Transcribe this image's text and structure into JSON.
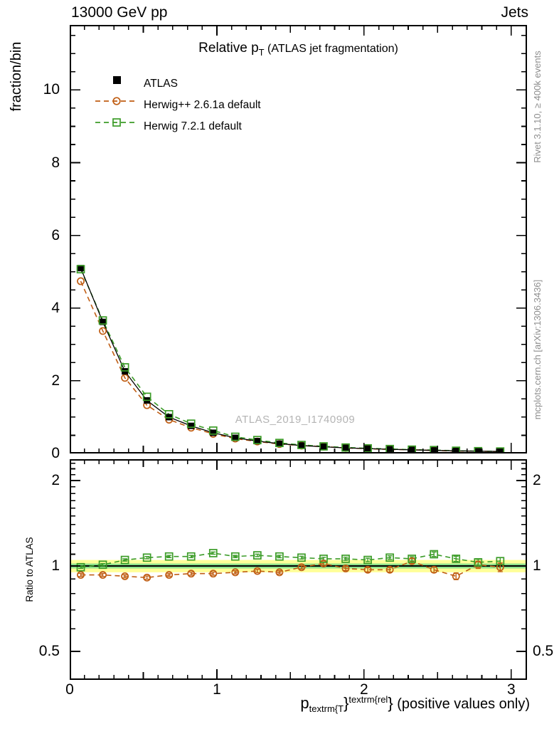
{
  "header": {
    "left": "13000 GeV pp",
    "right": "Jets"
  },
  "title": {
    "main": "Relative p",
    "sub": "T",
    "rest": " (ATLAS jet fragmentation)"
  },
  "legend": [
    {
      "label": "ATLAS",
      "marker": "filled-square-icon"
    },
    {
      "label": "Herwig++ 2.6.1a default",
      "marker": "open-circle-icon"
    },
    {
      "label": "Herwig 7.2.1 default",
      "marker": "open-square-icon"
    }
  ],
  "colors": {
    "atlas": "#000000",
    "herwigpp": "#c05e14",
    "herwig7": "#3c9c28",
    "band_outer": "#ffff99",
    "band_inner": "#8ce08c",
    "ref_line": "#000000",
    "side_note": "#8e8e8e",
    "watermark": "#b4b4b4"
  },
  "watermark": "ATLAS_2019_I1740909",
  "side_notes": {
    "top": "Rivet 3.1.10, ≥ 400k events",
    "bottom": "mcplots.cern.ch [arXiv:1306.3436]"
  },
  "axes": {
    "x": {
      "tick_labels": [
        "0",
        "1",
        "2",
        "3"
      ]
    },
    "main_y": {
      "label": "fraction/bin",
      "tick_labels": [
        "0",
        "2",
        "4",
        "6",
        "8",
        "10"
      ]
    },
    "ratio_y": {
      "label": "Ratio to ATLAS",
      "tick_labels": [
        "0.5",
        "1",
        "2"
      ]
    }
  },
  "xlabel": {
    "p": "p",
    "sub": "textrm{T",
    "brace1": "}",
    "sup": "textrm{rel",
    "brace2": "}",
    "rest": " (positive values only)"
  },
  "chart_data": [
    {
      "type": "line",
      "panel": "main",
      "title": "Relative pT (ATLAS jet fragmentation)",
      "ylabel": "fraction/bin",
      "xlim": [
        0,
        3.107
      ],
      "ylim": [
        0,
        11.79
      ],
      "xticks": [
        0,
        1,
        2,
        3
      ],
      "yticks": [
        0,
        2,
        4,
        6,
        8,
        10
      ],
      "grid": false,
      "legend_position": "upper-left",
      "x": [
        0.075,
        0.225,
        0.375,
        0.525,
        0.675,
        0.825,
        0.975,
        1.125,
        1.275,
        1.425,
        1.575,
        1.725,
        1.875,
        2.025,
        2.175,
        2.325,
        2.475,
        2.625,
        2.775,
        2.925
      ],
      "series": [
        {
          "name": "ATLAS",
          "color": "#000000",
          "marker": "filled-square",
          "line": "solid",
          "values": [
            5.1,
            3.62,
            2.26,
            1.46,
            1.0,
            0.76,
            0.57,
            0.43,
            0.34,
            0.27,
            0.22,
            0.185,
            0.155,
            0.135,
            0.115,
            0.1,
            0.085,
            0.072,
            0.062,
            0.054
          ],
          "errors": [
            0.06,
            0.05,
            0.04,
            0.03,
            0.02,
            0.02,
            0.015,
            0.012,
            0.01,
            0.01,
            0.008,
            0.008,
            0.006,
            0.006,
            0.005,
            0.005,
            0.004,
            0.004,
            0.003,
            0.003
          ]
        },
        {
          "name": "Herwig++ 2.6.1a default",
          "color": "#c05e14",
          "marker": "open-circle",
          "line": "dashed",
          "values": [
            4.74,
            3.37,
            2.08,
            1.33,
            0.93,
            0.71,
            0.54,
            0.41,
            0.33,
            0.26,
            0.218,
            0.189,
            0.152,
            0.131,
            0.112,
            0.104,
            0.082,
            0.066,
            0.063,
            0.053
          ],
          "errors": [
            0.03,
            0.025,
            0.02,
            0.015,
            0.012,
            0.01,
            0.008,
            0.007,
            0.006,
            0.005,
            0.005,
            0.004,
            0.004,
            0.004,
            0.003,
            0.003,
            0.003,
            0.003,
            0.003,
            0.003
          ]
        },
        {
          "name": "Herwig 7.2.1 default",
          "color": "#3c9c28",
          "marker": "open-square",
          "line": "dashed",
          "values": [
            5.07,
            3.66,
            2.37,
            1.56,
            1.08,
            0.82,
            0.63,
            0.46,
            0.37,
            0.29,
            0.235,
            0.196,
            0.164,
            0.142,
            0.123,
            0.106,
            0.094,
            0.076,
            0.064,
            0.056
          ],
          "errors": [
            0.03,
            0.025,
            0.02,
            0.015,
            0.012,
            0.01,
            0.008,
            0.007,
            0.006,
            0.005,
            0.005,
            0.004,
            0.004,
            0.004,
            0.003,
            0.003,
            0.003,
            0.003,
            0.003,
            0.003
          ]
        }
      ]
    },
    {
      "type": "line",
      "panel": "ratio",
      "ylabel": "Ratio to ATLAS",
      "yscale": "log",
      "ylim": [
        0.397,
        2.38
      ],
      "yticks": [
        0.5,
        1,
        2
      ],
      "xticks": [
        0,
        1,
        2,
        3
      ],
      "xlim": [
        0,
        3.107
      ],
      "reference_line": 1.0,
      "bands": [
        {
          "lo": 0.95,
          "hi": 1.05,
          "color": "#ffff99"
        },
        {
          "lo": 0.98,
          "hi": 1.02,
          "color": "#8ce08c"
        }
      ],
      "x": [
        0.075,
        0.225,
        0.375,
        0.525,
        0.675,
        0.825,
        0.975,
        1.125,
        1.275,
        1.425,
        1.575,
        1.725,
        1.875,
        2.025,
        2.175,
        2.325,
        2.475,
        2.625,
        2.775,
        2.925
      ],
      "series": [
        {
          "name": "Herwig++ 2.6.1a default",
          "color": "#c05e14",
          "marker": "open-circle",
          "line": "dashed",
          "values": [
            0.93,
            0.93,
            0.92,
            0.91,
            0.93,
            0.94,
            0.94,
            0.95,
            0.96,
            0.95,
            0.99,
            1.02,
            0.98,
            0.97,
            0.97,
            1.04,
            0.97,
            0.92,
            1.01,
            0.99
          ],
          "errors": [
            0.012,
            0.012,
            0.012,
            0.012,
            0.012,
            0.012,
            0.012,
            0.012,
            0.013,
            0.013,
            0.014,
            0.015,
            0.016,
            0.017,
            0.018,
            0.02,
            0.022,
            0.025,
            0.03,
            0.035
          ]
        },
        {
          "name": "Herwig 7.2.1 default",
          "color": "#3c9c28",
          "marker": "open-square",
          "line": "dashed",
          "values": [
            0.99,
            1.01,
            1.05,
            1.07,
            1.08,
            1.08,
            1.11,
            1.08,
            1.09,
            1.08,
            1.07,
            1.06,
            1.06,
            1.05,
            1.07,
            1.06,
            1.1,
            1.06,
            1.03,
            1.04
          ],
          "errors": [
            0.01,
            0.01,
            0.01,
            0.01,
            0.01,
            0.01,
            0.01,
            0.01,
            0.011,
            0.011,
            0.012,
            0.013,
            0.014,
            0.015,
            0.016,
            0.018,
            0.02,
            0.022,
            0.026,
            0.03
          ]
        }
      ]
    }
  ]
}
